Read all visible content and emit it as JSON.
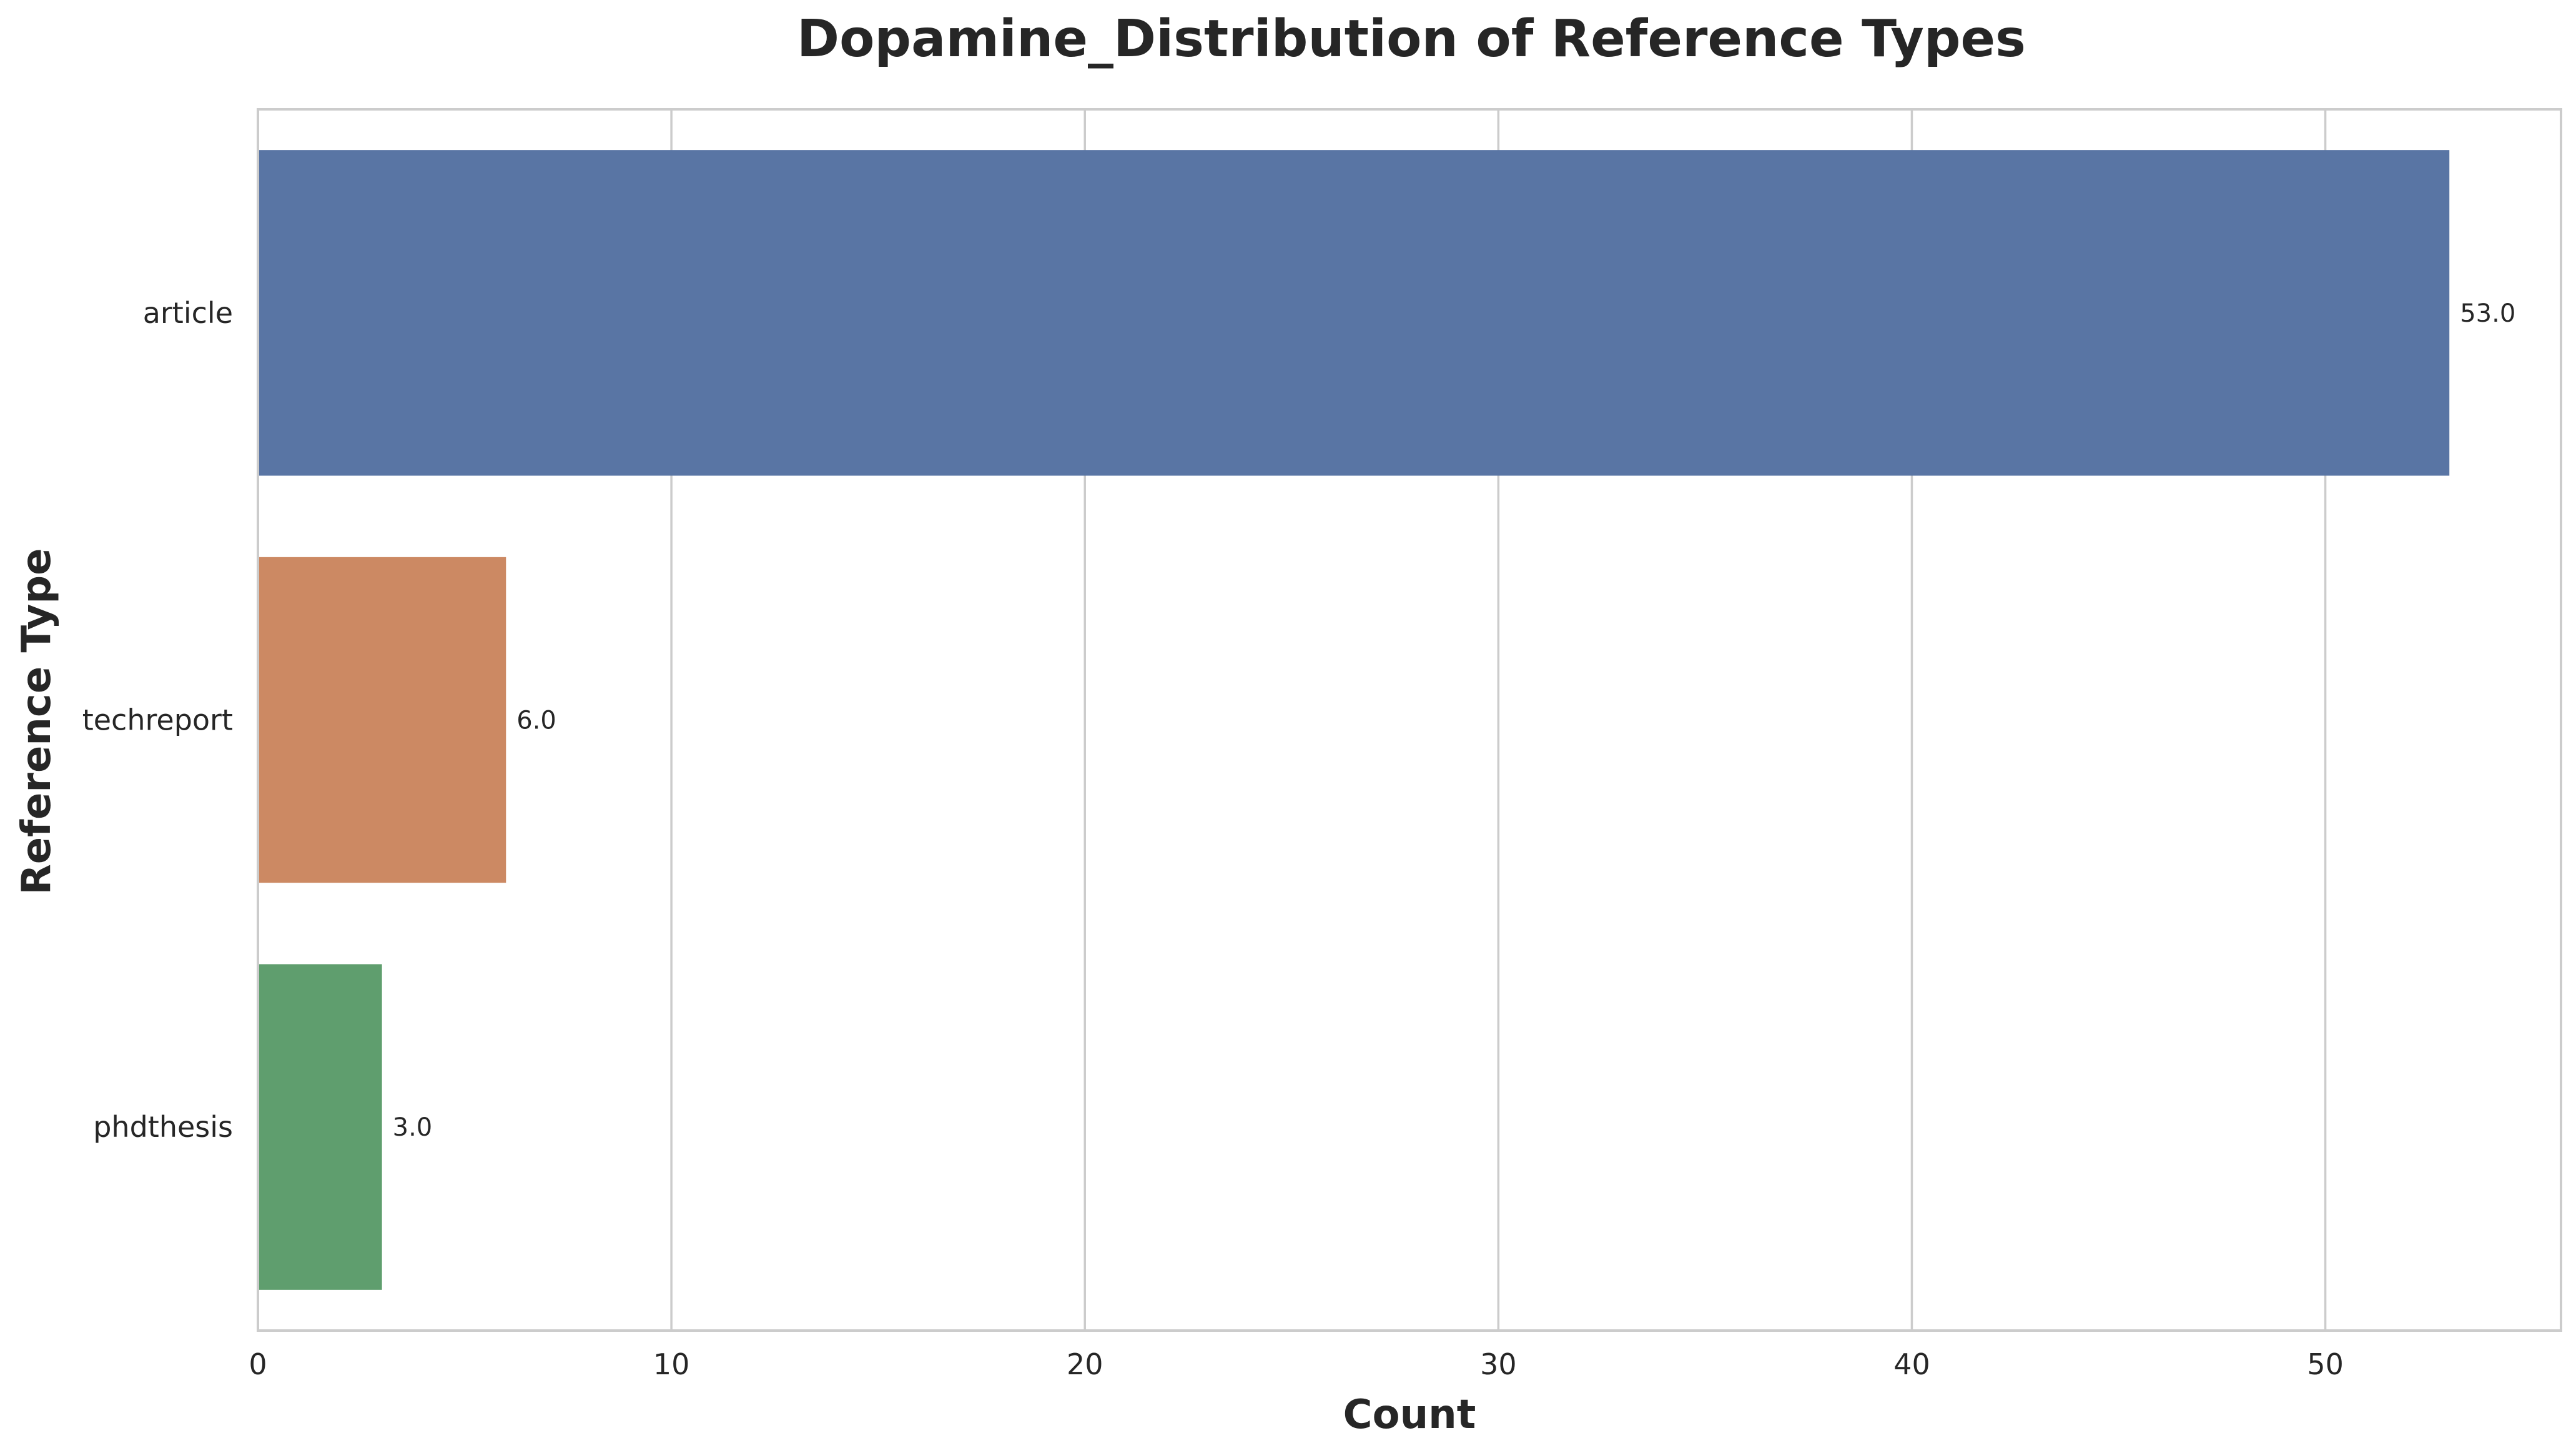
{
  "chart_data": {
    "type": "bar",
    "orientation": "horizontal",
    "title": "Dopamine_Distribution of Reference Types",
    "xlabel": "Count",
    "ylabel": "Reference Type",
    "categories": [
      "article",
      "techreport",
      "phdthesis"
    ],
    "values": [
      53,
      6,
      3
    ],
    "value_labels": [
      "53.0",
      "6.0",
      "3.0"
    ],
    "colors": [
      "#5975a4",
      "#cc8963",
      "#5f9e6e"
    ],
    "xlim": [
      0,
      55.7
    ],
    "xticks": [
      0,
      10,
      20,
      30,
      40,
      50
    ],
    "xtick_labels": [
      "0",
      "10",
      "20",
      "30",
      "40",
      "50"
    ],
    "grid": "vertical",
    "legend": "none"
  }
}
